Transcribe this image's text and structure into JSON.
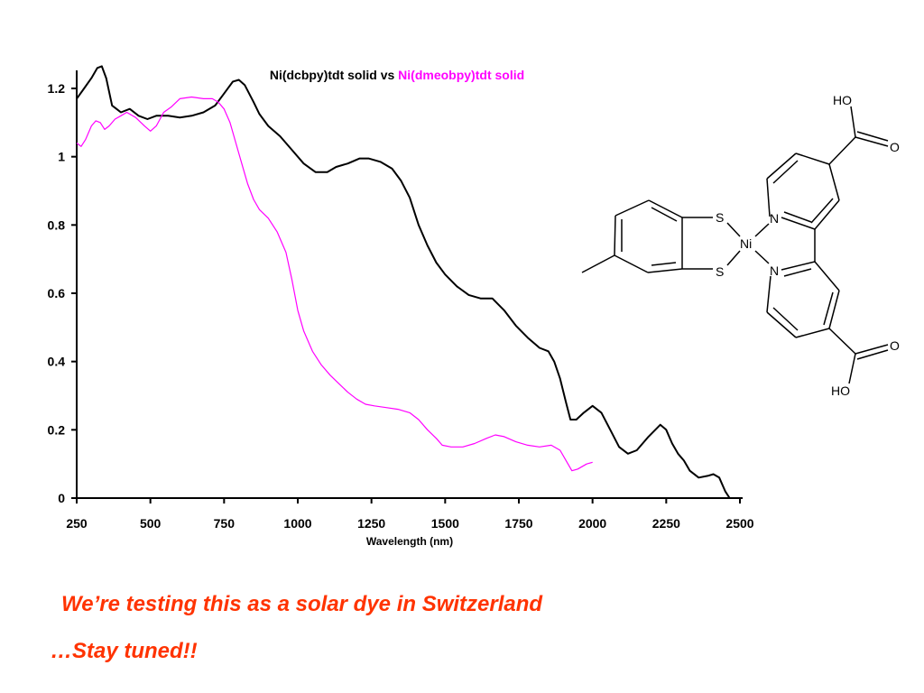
{
  "chart_data": {
    "type": "line",
    "title": [
      {
        "text": "Ni(dcbpy)tdt solid vs ",
        "color": "#000000"
      },
      {
        "text": "Ni(dmeobpy)tdt solid",
        "color": "#ff00ff"
      }
    ],
    "xlabel": "Wavelength (nm)",
    "ylabel": "",
    "xlim": [
      250,
      2500
    ],
    "ylim": [
      0,
      1.2
    ],
    "x_ticks": [
      250,
      500,
      750,
      1000,
      1250,
      1500,
      1750,
      2000,
      2250,
      2500
    ],
    "y_ticks": [
      0,
      0.2,
      0.4,
      0.6,
      0.8,
      1,
      1.2
    ],
    "y_tick_labels": [
      "0",
      "0.2",
      "0.4",
      "0.6",
      "0.8",
      "1",
      "1.2"
    ],
    "grid": false,
    "series": [
      {
        "name": "Ni(dcbpy)tdt solid",
        "color": "#000000",
        "points": [
          [
            250,
            1.17
          ],
          [
            275,
            1.2
          ],
          [
            300,
            1.23
          ],
          [
            320,
            1.26
          ],
          [
            335,
            1.265
          ],
          [
            350,
            1.23
          ],
          [
            370,
            1.15
          ],
          [
            400,
            1.13
          ],
          [
            430,
            1.14
          ],
          [
            460,
            1.12
          ],
          [
            490,
            1.11
          ],
          [
            520,
            1.12
          ],
          [
            560,
            1.12
          ],
          [
            600,
            1.115
          ],
          [
            640,
            1.12
          ],
          [
            680,
            1.13
          ],
          [
            720,
            1.15
          ],
          [
            750,
            1.185
          ],
          [
            780,
            1.22
          ],
          [
            800,
            1.225
          ],
          [
            820,
            1.21
          ],
          [
            850,
            1.16
          ],
          [
            870,
            1.125
          ],
          [
            900,
            1.09
          ],
          [
            940,
            1.06
          ],
          [
            980,
            1.02
          ],
          [
            1020,
            0.98
          ],
          [
            1060,
            0.955
          ],
          [
            1100,
            0.955
          ],
          [
            1130,
            0.97
          ],
          [
            1170,
            0.98
          ],
          [
            1210,
            0.995
          ],
          [
            1240,
            0.995
          ],
          [
            1280,
            0.985
          ],
          [
            1320,
            0.965
          ],
          [
            1350,
            0.93
          ],
          [
            1380,
            0.88
          ],
          [
            1410,
            0.8
          ],
          [
            1440,
            0.74
          ],
          [
            1470,
            0.69
          ],
          [
            1500,
            0.655
          ],
          [
            1540,
            0.62
          ],
          [
            1580,
            0.595
          ],
          [
            1620,
            0.585
          ],
          [
            1660,
            0.585
          ],
          [
            1700,
            0.55
          ],
          [
            1740,
            0.505
          ],
          [
            1780,
            0.47
          ],
          [
            1820,
            0.44
          ],
          [
            1850,
            0.43
          ],
          [
            1870,
            0.4
          ],
          [
            1890,
            0.35
          ],
          [
            1910,
            0.28
          ],
          [
            1925,
            0.23
          ],
          [
            1945,
            0.23
          ],
          [
            1970,
            0.25
          ],
          [
            2000,
            0.27
          ],
          [
            2030,
            0.25
          ],
          [
            2060,
            0.2
          ],
          [
            2090,
            0.15
          ],
          [
            2120,
            0.13
          ],
          [
            2150,
            0.14
          ],
          [
            2190,
            0.18
          ],
          [
            2230,
            0.215
          ],
          [
            2250,
            0.2
          ],
          [
            2270,
            0.16
          ],
          [
            2290,
            0.13
          ],
          [
            2310,
            0.11
          ],
          [
            2330,
            0.08
          ],
          [
            2360,
            0.06
          ],
          [
            2390,
            0.065
          ],
          [
            2410,
            0.07
          ],
          [
            2430,
            0.06
          ],
          [
            2450,
            0.02
          ],
          [
            2465,
            0.0
          ]
        ]
      },
      {
        "name": "Ni(dmeobpy)tdt solid",
        "color": "#ff00ff",
        "points": [
          [
            250,
            1.04
          ],
          [
            265,
            1.03
          ],
          [
            280,
            1.05
          ],
          [
            300,
            1.09
          ],
          [
            315,
            1.105
          ],
          [
            330,
            1.1
          ],
          [
            345,
            1.08
          ],
          [
            360,
            1.09
          ],
          [
            380,
            1.11
          ],
          [
            400,
            1.12
          ],
          [
            420,
            1.13
          ],
          [
            450,
            1.115
          ],
          [
            480,
            1.09
          ],
          [
            500,
            1.075
          ],
          [
            520,
            1.09
          ],
          [
            545,
            1.13
          ],
          [
            570,
            1.145
          ],
          [
            600,
            1.17
          ],
          [
            640,
            1.175
          ],
          [
            680,
            1.17
          ],
          [
            710,
            1.17
          ],
          [
            730,
            1.16
          ],
          [
            750,
            1.14
          ],
          [
            770,
            1.1
          ],
          [
            790,
            1.04
          ],
          [
            810,
            0.98
          ],
          [
            830,
            0.92
          ],
          [
            850,
            0.875
          ],
          [
            870,
            0.845
          ],
          [
            900,
            0.82
          ],
          [
            930,
            0.78
          ],
          [
            960,
            0.72
          ],
          [
            980,
            0.64
          ],
          [
            1000,
            0.55
          ],
          [
            1020,
            0.49
          ],
          [
            1050,
            0.43
          ],
          [
            1080,
            0.39
          ],
          [
            1110,
            0.36
          ],
          [
            1140,
            0.335
          ],
          [
            1170,
            0.31
          ],
          [
            1200,
            0.29
          ],
          [
            1230,
            0.275
          ],
          [
            1260,
            0.27
          ],
          [
            1300,
            0.265
          ],
          [
            1340,
            0.26
          ],
          [
            1380,
            0.25
          ],
          [
            1410,
            0.23
          ],
          [
            1440,
            0.2
          ],
          [
            1470,
            0.175
          ],
          [
            1490,
            0.155
          ],
          [
            1520,
            0.15
          ],
          [
            1560,
            0.15
          ],
          [
            1600,
            0.16
          ],
          [
            1640,
            0.175
          ],
          [
            1670,
            0.185
          ],
          [
            1700,
            0.18
          ],
          [
            1740,
            0.165
          ],
          [
            1780,
            0.155
          ],
          [
            1820,
            0.15
          ],
          [
            1860,
            0.155
          ],
          [
            1890,
            0.14
          ],
          [
            1910,
            0.11
          ],
          [
            1930,
            0.08
          ],
          [
            1950,
            0.085
          ],
          [
            1980,
            0.1
          ],
          [
            2000,
            0.105
          ]
        ]
      }
    ]
  },
  "molecule": {
    "atoms": {
      "ho_top": "HO",
      "o_top": "O",
      "n1": "N",
      "ni": "Ni",
      "n2": "N",
      "s1": "S",
      "s2": "S",
      "o_bottom": "O",
      "ho_bottom": "HO"
    }
  },
  "captions": {
    "line1": "We’re testing this as a solar dye in Switzerland",
    "line2": "…Stay tuned!!"
  }
}
